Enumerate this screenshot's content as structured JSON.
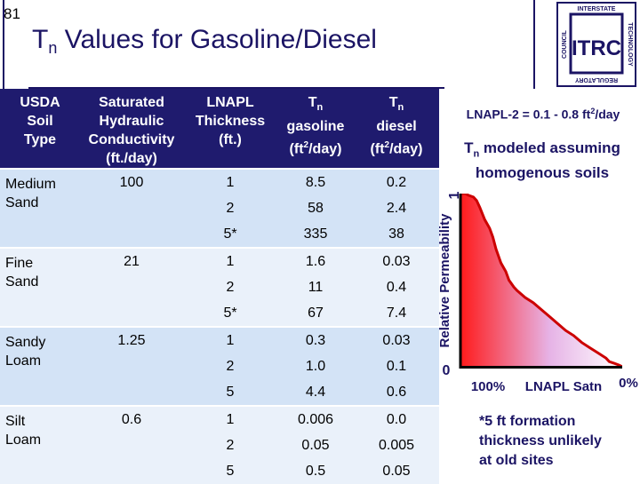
{
  "slide_number": "81",
  "title": {
    "prefix": "T",
    "sub": "n",
    "rest": " Values for Gasoline/Diesel"
  },
  "logo": {
    "top_text": "INTERSTATE",
    "right_text": "TECHNOLOGY",
    "left_text": "COUNCIL",
    "bottom_text": "REGULATORY",
    "center_text": "ITRC"
  },
  "table": {
    "headers": {
      "soil": [
        "USDA",
        "Soil",
        "Type"
      ],
      "conductivity": [
        "Saturated",
        "Hydraulic",
        "Conductivity",
        "(ft./day)"
      ],
      "thickness": [
        "LNAPL",
        "Thickness",
        "(ft.)"
      ],
      "tn_gas": {
        "name": "T",
        "sub": "n",
        "line2": "gasoline",
        "line3_pre": "(ft",
        "line3_sup": "2",
        "line3_post": "/day)"
      },
      "tn_diesel": {
        "name": "T",
        "sub": "n",
        "line2": "diesel",
        "line3_pre": "(ft",
        "line3_sup": "2",
        "line3_post": "/day)"
      }
    },
    "groups": [
      {
        "soil_line1": "Medium",
        "soil_line2": "Sand",
        "conductivity": "100",
        "rows": [
          {
            "thickness": "1",
            "tn_gas": "8.5",
            "tn_diesel": "0.2"
          },
          {
            "thickness": "2",
            "tn_gas": "58",
            "tn_diesel": "2.4"
          },
          {
            "thickness": "5*",
            "tn_gas": "335",
            "tn_diesel": "38"
          }
        ]
      },
      {
        "soil_line1": "Fine",
        "soil_line2": "Sand",
        "conductivity": "21",
        "rows": [
          {
            "thickness": "1",
            "tn_gas": "1.6",
            "tn_diesel": "0.03"
          },
          {
            "thickness": "2",
            "tn_gas": "11",
            "tn_diesel": "0.4"
          },
          {
            "thickness": "5*",
            "tn_gas": "67",
            "tn_diesel": "7.4"
          }
        ]
      },
      {
        "soil_line1": "Sandy",
        "soil_line2": "Loam",
        "conductivity": "1.25",
        "rows": [
          {
            "thickness": "1",
            "tn_gas": "0.3",
            "tn_diesel": "0.03"
          },
          {
            "thickness": "2",
            "tn_gas": "1.0",
            "tn_diesel": "0.1"
          },
          {
            "thickness": "5",
            "tn_gas": "4.4",
            "tn_diesel": "0.6"
          }
        ]
      },
      {
        "soil_line1": "Silt",
        "soil_line2": "Loam",
        "conductivity": "0.6",
        "rows": [
          {
            "thickness": "1",
            "tn_gas": "0.006",
            "tn_diesel": "0.0"
          },
          {
            "thickness": "2",
            "tn_gas": "0.05",
            "tn_diesel": "0.005"
          },
          {
            "thickness": "5",
            "tn_gas": "0.5",
            "tn_diesel": "0.05"
          }
        ]
      }
    ]
  },
  "lnapl_note": {
    "pre": "LNAPL-2 = 0.1 - 0.8 ft",
    "sup": "2",
    "post": "/day"
  },
  "modeled_note": {
    "name": "T",
    "sub": "n",
    "line1_rest": " modeled assuming",
    "line2": "homogenous soils"
  },
  "chart_data": {
    "type": "line",
    "title": "",
    "xlabel": "LNAPL Satn",
    "ylabel": "Relative Permeability",
    "x_tick_labels": {
      "left": "100%",
      "right": "0%"
    },
    "y_tick_labels": {
      "top": "1",
      "bottom": "0"
    },
    "xlim": [
      100,
      0
    ],
    "ylim": [
      0,
      1
    ],
    "x": [
      100,
      97,
      95,
      92,
      90,
      88,
      85,
      82,
      80,
      78,
      75,
      72,
      70,
      67,
      65,
      60,
      55,
      50,
      45,
      40,
      35,
      30,
      25,
      20,
      15,
      10,
      8,
      5,
      2,
      0
    ],
    "y": [
      1.0,
      1.0,
      0.99,
      0.98,
      0.96,
      0.92,
      0.85,
      0.8,
      0.75,
      0.68,
      0.6,
      0.55,
      0.5,
      0.46,
      0.44,
      0.4,
      0.37,
      0.33,
      0.29,
      0.25,
      0.21,
      0.18,
      0.14,
      0.11,
      0.08,
      0.05,
      0.03,
      0.02,
      0.01,
      0.0
    ],
    "line_color": "#cc0000",
    "gradient": {
      "left": "#ff1a1a",
      "mid": "#e6b3e6",
      "right": "#ffffff"
    }
  },
  "footnote": [
    "*5 ft formation",
    "thickness unlikely",
    "at old sites"
  ],
  "colors": {
    "navy": "#1b1464",
    "header_bg": "#1f1b6e",
    "band_dark": "#d3e3f6",
    "band_light": "#eaf1fa"
  }
}
